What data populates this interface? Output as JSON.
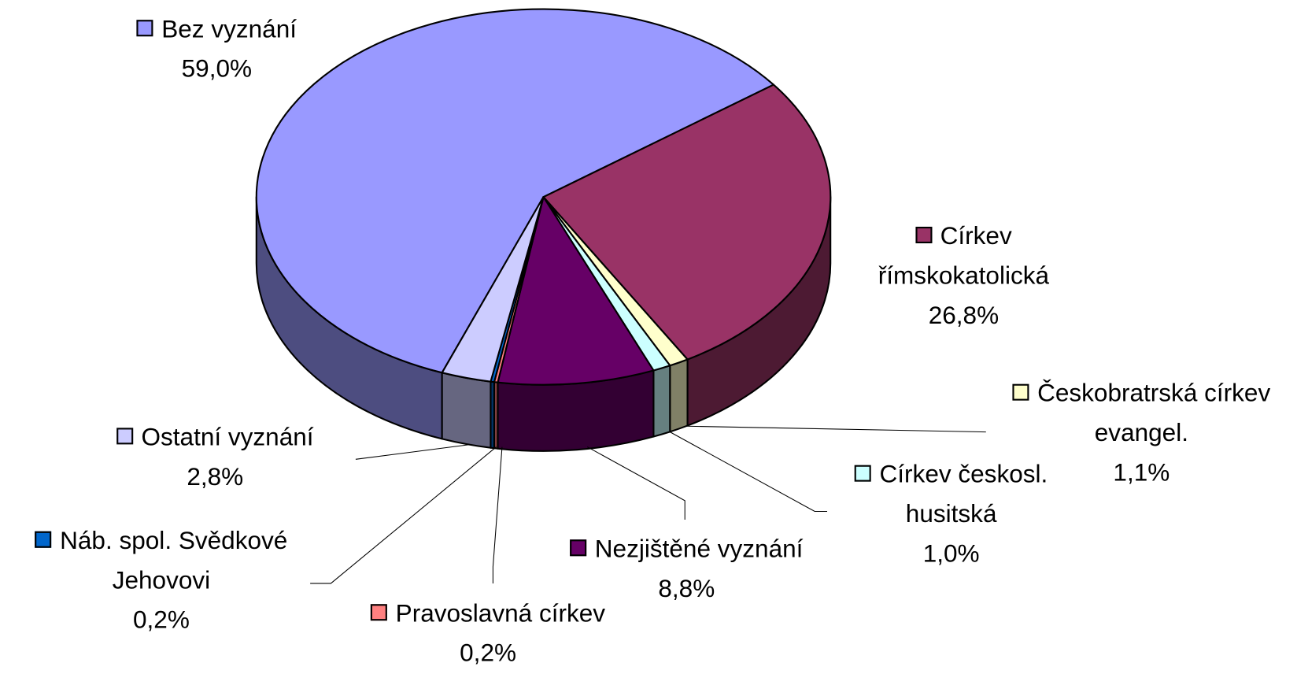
{
  "chart_data": {
    "type": "pie3d",
    "categories": [
      "Bez vyznání",
      "Církev římskokatolická",
      "Českobratrská církev evangel.",
      "Církev českosl. husitská",
      "Nezjištěné vyznání",
      "Pravoslavná církev",
      "Náb. spol. Svědkové Jehovovi",
      "Ostatní vyznání"
    ],
    "values": [
      59.0,
      26.8,
      1.1,
      1.0,
      8.8,
      0.2,
      0.2,
      2.8
    ],
    "value_labels": [
      "59,0%",
      "26,8%",
      "1,1%",
      "1,0%",
      "8,8%",
      "0,2%",
      "0,2%",
      "2,8%"
    ],
    "colors": [
      "#9999ff",
      "#993366",
      "#ffffcc",
      "#ccffff",
      "#660066",
      "#ff8080",
      "#0066cc",
      "#ccccff"
    ]
  }
}
